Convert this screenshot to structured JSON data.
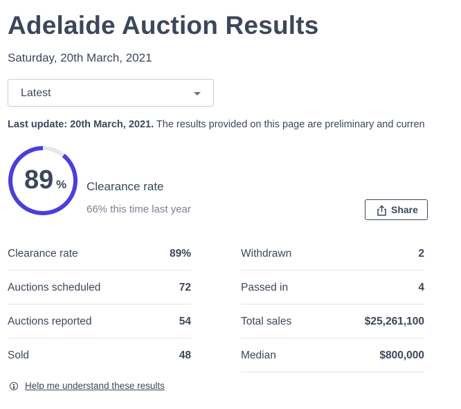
{
  "page": {
    "title": "Adelaide Auction Results",
    "date": "Saturday, 20th March, 2021"
  },
  "filter": {
    "selected": "Latest",
    "caret_icon": "chevron-down-icon"
  },
  "update": {
    "label": "Last update: 20th March, 2021.",
    "text": " The results provided on this page are preliminary and curren"
  },
  "clearance": {
    "value": "89",
    "percent_sign": "%",
    "fraction": 0.89,
    "label": "Clearance rate",
    "last_year": "66% this time last year",
    "ring_color": "#4a3fdc",
    "track_color": "#e6e7ec"
  },
  "share": {
    "label": "Share",
    "icon": "share-icon"
  },
  "stats": {
    "left": [
      {
        "label": "Clearance rate",
        "value": "89%"
      },
      {
        "label": "Auctions scheduled",
        "value": "72"
      },
      {
        "label": "Auctions reported",
        "value": "54"
      },
      {
        "label": "Sold",
        "value": "48"
      }
    ],
    "right": [
      {
        "label": "Withdrawn",
        "value": "2"
      },
      {
        "label": "Passed in",
        "value": "4"
      },
      {
        "label": "Total sales",
        "value": "$25,261,100"
      },
      {
        "label": "Median",
        "value": "$800,000"
      }
    ]
  },
  "help": {
    "label": "Help me understand these results",
    "icon": "info-icon"
  }
}
